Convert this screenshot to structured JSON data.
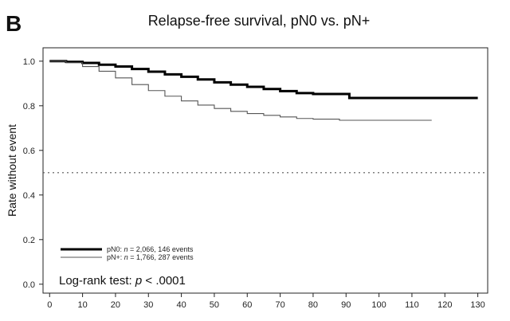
{
  "panel_letter": "B",
  "chart_data": {
    "type": "line",
    "chart_subtype": "kaplan-meier step curves",
    "title": "Relapse-free survival, pN0 vs. pN+",
    "xlabel": "",
    "ylabel": "Rate without event",
    "xlim": [
      -2,
      133
    ],
    "ylim": [
      -0.04,
      1.06
    ],
    "xticks": [
      0,
      10,
      20,
      30,
      40,
      50,
      60,
      70,
      80,
      90,
      100,
      110,
      120,
      130
    ],
    "yticks": [
      0.0,
      0.2,
      0.4,
      0.6,
      0.8,
      1.0
    ],
    "xtick_labels": [
      "0",
      "10",
      "20",
      "30",
      "40",
      "50",
      "60",
      "70",
      "80",
      "90",
      "100",
      "110",
      "120",
      "130"
    ],
    "ytick_labels": [
      "0.0",
      "0.2",
      "0.4",
      "0.6",
      "0.8",
      "1.0"
    ],
    "reference_line": {
      "y": 0.5,
      "style": "dotted"
    },
    "series": [
      {
        "name": "pN0",
        "legend_parts": [
          "pN0: ",
          "n",
          " = 2,066, 146 events"
        ],
        "color": "#000000",
        "thick": true,
        "x": [
          0,
          5,
          10,
          15,
          20,
          25,
          30,
          35,
          40,
          45,
          50,
          55,
          60,
          65,
          70,
          75,
          80,
          85,
          90,
          91,
          100,
          110,
          120,
          130
        ],
        "y": [
          1.0,
          0.997,
          0.992,
          0.984,
          0.976,
          0.965,
          0.953,
          0.941,
          0.93,
          0.918,
          0.905,
          0.895,
          0.885,
          0.875,
          0.866,
          0.857,
          0.853,
          0.853,
          0.853,
          0.835,
          0.835,
          0.835,
          0.835,
          0.835
        ]
      },
      {
        "name": "pN+",
        "legend_parts": [
          "pN+: ",
          "n",
          " = 1,766, 287 events"
        ],
        "color": "#555555",
        "thick": false,
        "x": [
          0,
          5,
          10,
          15,
          20,
          25,
          30,
          35,
          40,
          45,
          50,
          55,
          60,
          65,
          70,
          75,
          80,
          85,
          88,
          90,
          100,
          110,
          116
        ],
        "y": [
          1.0,
          0.993,
          0.976,
          0.955,
          0.925,
          0.895,
          0.868,
          0.843,
          0.822,
          0.803,
          0.788,
          0.775,
          0.765,
          0.757,
          0.75,
          0.743,
          0.74,
          0.74,
          0.735,
          0.735,
          0.735,
          0.735,
          0.735
        ]
      }
    ],
    "annotation_parts": [
      "Log-rank test: ",
      "p",
      " < .0001"
    ]
  }
}
